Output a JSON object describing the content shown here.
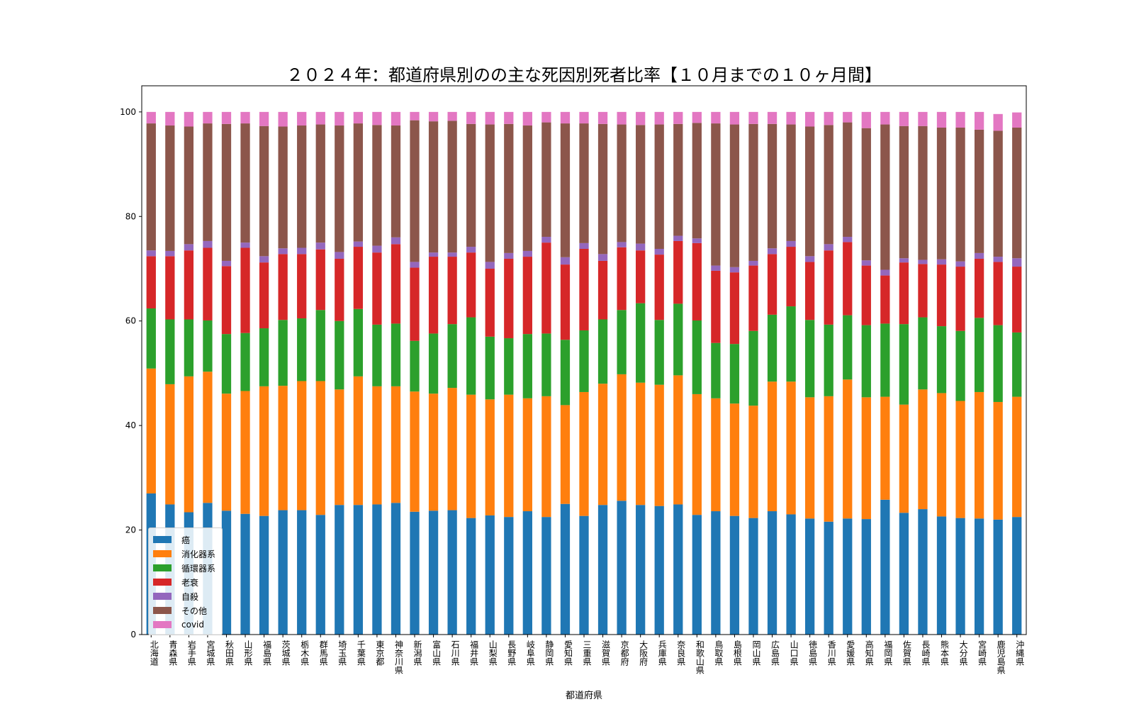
{
  "chart_data": {
    "type": "bar",
    "stacked": true,
    "title": "２０２４年：都道府県別のの主な死因別死者比率【１０月までの１０ヶ月間】",
    "xlabel": "都道府県",
    "ylabel": "",
    "ylim": [
      0,
      105
    ],
    "yticks": [
      0,
      20,
      40,
      60,
      80,
      100
    ],
    "grid": false,
    "legend_position": "lower-left",
    "categories": [
      "北海道",
      "青森県",
      "岩手県",
      "宮城県",
      "秋田県",
      "山形県",
      "福島県",
      "茨城県",
      "栃木県",
      "群馬県",
      "埼玉県",
      "千葉県",
      "東京都",
      "神奈川県",
      "新潟県",
      "富山県",
      "石川県",
      "福井県",
      "山梨県",
      "長野県",
      "岐阜県",
      "静岡県",
      "愛知県",
      "三重県",
      "滋賀県",
      "京都府",
      "大阪府",
      "兵庫県",
      "奈良県",
      "和歌山県",
      "鳥取県",
      "島根県",
      "岡山県",
      "広島県",
      "山口県",
      "徳島県",
      "香川県",
      "愛媛県",
      "高知県",
      "福岡県",
      "佐賀県",
      "長崎県",
      "熊本県",
      "大分県",
      "宮崎県",
      "鹿児島県",
      "沖縄県"
    ],
    "series": [
      {
        "name": "癌",
        "color": "#1f77b4",
        "values": [
          27.0,
          24.9,
          23.4,
          25.2,
          23.7,
          23.1,
          22.7,
          23.8,
          23.8,
          22.9,
          24.8,
          24.8,
          24.9,
          25.2,
          23.5,
          23.7,
          23.8,
          22.3,
          22.8,
          22.5,
          23.6,
          22.5,
          25.0,
          22.7,
          24.8,
          25.6,
          24.8,
          24.6,
          24.9,
          22.9,
          23.6,
          22.7,
          22.3,
          23.6,
          23.0,
          22.2,
          21.6,
          22.2,
          22.1,
          25.8,
          23.3,
          24.0,
          22.6,
          22.3,
          22.2,
          22.0,
          22.5
        ]
      },
      {
        "name": "消化器系",
        "color": "#ff7f0e",
        "values": [
          23.9,
          23.0,
          26.0,
          25.1,
          22.4,
          23.5,
          24.8,
          23.8,
          24.7,
          25.6,
          22.1,
          24.6,
          22.6,
          22.3,
          23.0,
          22.4,
          23.4,
          23.6,
          22.2,
          23.4,
          21.6,
          23.1,
          18.9,
          23.7,
          23.2,
          24.2,
          23.4,
          23.2,
          24.7,
          23.1,
          21.6,
          21.5,
          21.5,
          24.8,
          25.4,
          23.2,
          24.0,
          26.6,
          23.3,
          19.7,
          20.7,
          22.9,
          23.6,
          22.4,
          24.2,
          22.5,
          23.0
        ]
      },
      {
        "name": "循環器系",
        "color": "#2ca02c",
        "values": [
          11.5,
          12.4,
          10.9,
          9.8,
          11.4,
          11.1,
          11.1,
          12.6,
          12.0,
          13.6,
          13.1,
          12.9,
          11.8,
          12.0,
          9.7,
          11.5,
          12.2,
          14.8,
          12.0,
          10.8,
          12.3,
          12.0,
          12.5,
          11.8,
          12.3,
          12.3,
          15.2,
          12.4,
          13.7,
          14.1,
          10.6,
          11.4,
          14.3,
          12.8,
          14.4,
          14.8,
          13.7,
          12.3,
          13.8,
          14.0,
          15.4,
          13.8,
          12.8,
          13.4,
          14.2,
          14.7,
          12.3
        ]
      },
      {
        "name": "老衰",
        "color": "#d62728",
        "values": [
          10.0,
          12.1,
          13.2,
          13.9,
          13.0,
          16.3,
          12.6,
          12.6,
          12.3,
          11.6,
          11.9,
          11.9,
          13.8,
          15.2,
          14.0,
          14.7,
          12.9,
          12.4,
          13.0,
          15.2,
          14.8,
          17.4,
          14.4,
          15.6,
          11.2,
          12.0,
          10.1,
          12.5,
          12.0,
          14.8,
          13.8,
          13.7,
          12.5,
          11.6,
          11.4,
          11.1,
          14.2,
          14.0,
          11.4,
          9.2,
          11.8,
          10.2,
          11.8,
          12.3,
          11.3,
          12.1,
          12.6
        ]
      },
      {
        "name": "自殺",
        "color": "#9467bd",
        "values": [
          1.1,
          1.0,
          1.2,
          1.3,
          1.0,
          1.0,
          1.2,
          1.1,
          1.2,
          1.3,
          1.3,
          1.0,
          1.3,
          1.3,
          1.1,
          0.8,
          0.8,
          1.1,
          1.3,
          1.1,
          1.1,
          1.1,
          1.4,
          1.1,
          1.3,
          1.0,
          1.3,
          1.1,
          1.0,
          0.9,
          1.0,
          1.0,
          0.9,
          1.1,
          1.1,
          1.1,
          1.2,
          1.0,
          1.0,
          1.1,
          0.8,
          0.8,
          1.0,
          1.0,
          1.1,
          1.0,
          1.6
        ]
      },
      {
        "name": "その他",
        "color": "#8c564b",
        "values": [
          24.3,
          24.0,
          22.5,
          22.5,
          26.2,
          22.8,
          24.9,
          23.3,
          23.4,
          22.6,
          24.2,
          22.6,
          23.1,
          21.4,
          27.1,
          25.1,
          25.2,
          23.5,
          26.3,
          24.7,
          24.0,
          21.9,
          25.6,
          22.9,
          24.9,
          22.5,
          22.7,
          23.8,
          21.4,
          22.1,
          27.2,
          27.3,
          26.2,
          23.8,
          22.3,
          24.8,
          22.8,
          21.9,
          25.3,
          27.8,
          25.3,
          25.6,
          25.2,
          25.6,
          23.6,
          24.1,
          25.0
        ]
      },
      {
        "name": "covid",
        "color": "#e377c2",
        "values": [
          2.2,
          2.6,
          2.8,
          2.2,
          2.3,
          2.2,
          2.7,
          2.8,
          2.6,
          2.4,
          2.6,
          2.2,
          2.5,
          2.6,
          1.6,
          1.8,
          1.7,
          2.3,
          2.4,
          2.3,
          2.6,
          2.0,
          2.2,
          2.2,
          2.3,
          2.4,
          2.5,
          2.4,
          2.3,
          2.1,
          2.2,
          2.4,
          2.3,
          2.3,
          2.4,
          2.8,
          2.5,
          2.0,
          3.1,
          2.4,
          2.7,
          2.7,
          3.0,
          3.0,
          3.4,
          3.2,
          2.9
        ]
      }
    ]
  }
}
